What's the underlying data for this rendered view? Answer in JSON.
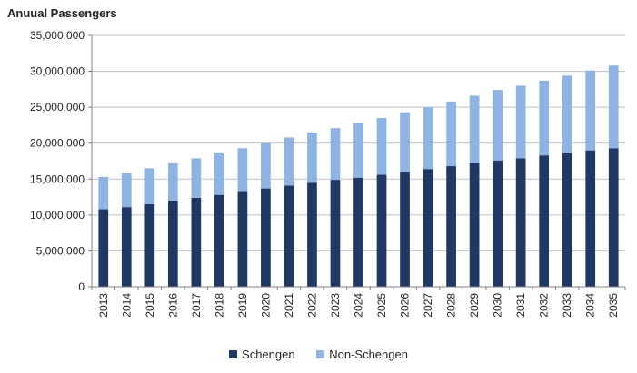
{
  "chart_data": {
    "type": "bar",
    "stacked": true,
    "title": "Anuual Passengers",
    "xlabel": "",
    "ylabel": "",
    "ylim": [
      0,
      35000000
    ],
    "yticks": [
      0,
      5000000,
      10000000,
      15000000,
      20000000,
      25000000,
      30000000,
      35000000
    ],
    "ytick_labels": [
      "0",
      "5,000,000",
      "10,000,000",
      "15,000,000",
      "20,000,000",
      "25,000,000",
      "30,000,000",
      "35,000,000"
    ],
    "categories": [
      "2013",
      "2014",
      "2015",
      "2016",
      "2017",
      "2018",
      "2019",
      "2020",
      "2021",
      "2022",
      "2023",
      "2024",
      "2025",
      "2026",
      "2027",
      "2028",
      "2029",
      "2030",
      "2031",
      "2032",
      "2033",
      "2034",
      "2035"
    ],
    "series": [
      {
        "name": "Schengen",
        "color": "#1f3864",
        "values": [
          10800000,
          11100000,
          11500000,
          12000000,
          12400000,
          12800000,
          13200000,
          13700000,
          14100000,
          14500000,
          14900000,
          15200000,
          15600000,
          16000000,
          16400000,
          16800000,
          17200000,
          17600000,
          17900000,
          18300000,
          18600000,
          19000000,
          19300000
        ]
      },
      {
        "name": "Non-Schengen",
        "color": "#8eb4e3",
        "values": [
          4500000,
          4700000,
          5000000,
          5200000,
          5500000,
          5800000,
          6100000,
          6300000,
          6700000,
          7000000,
          7200000,
          7600000,
          7900000,
          8300000,
          8600000,
          9000000,
          9400000,
          9800000,
          10100000,
          10400000,
          10800000,
          11100000,
          11500000
        ]
      }
    ],
    "legend_position": "bottom",
    "grid": true
  }
}
